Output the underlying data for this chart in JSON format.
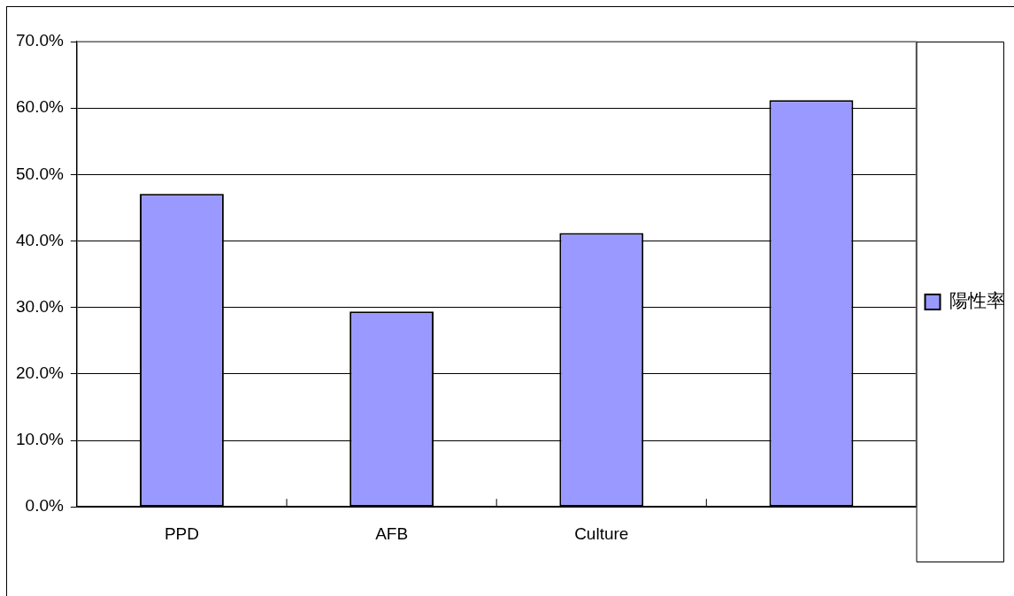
{
  "chart_data": {
    "type": "bar",
    "categories": [
      "PPD",
      "AFB",
      "Culture",
      null
    ],
    "series": [
      {
        "name": "陽性率",
        "color": "#9999ff",
        "values": [
          47.1,
          29.4,
          41.2,
          61.2
        ]
      }
    ],
    "ylim": [
      0,
      70
    ],
    "yticks": [
      {
        "value": 0,
        "label": "0.0%"
      },
      {
        "value": 10,
        "label": "10.0%"
      },
      {
        "value": 20,
        "label": "20.0%"
      },
      {
        "value": 30,
        "label": "30.0%"
      },
      {
        "value": 40,
        "label": "40.0%"
      },
      {
        "value": 50,
        "label": "50.0%"
      },
      {
        "value": 60,
        "label": "60.0%"
      },
      {
        "value": 70,
        "label": "70.0%"
      }
    ],
    "grid": "y",
    "legend": "right"
  }
}
